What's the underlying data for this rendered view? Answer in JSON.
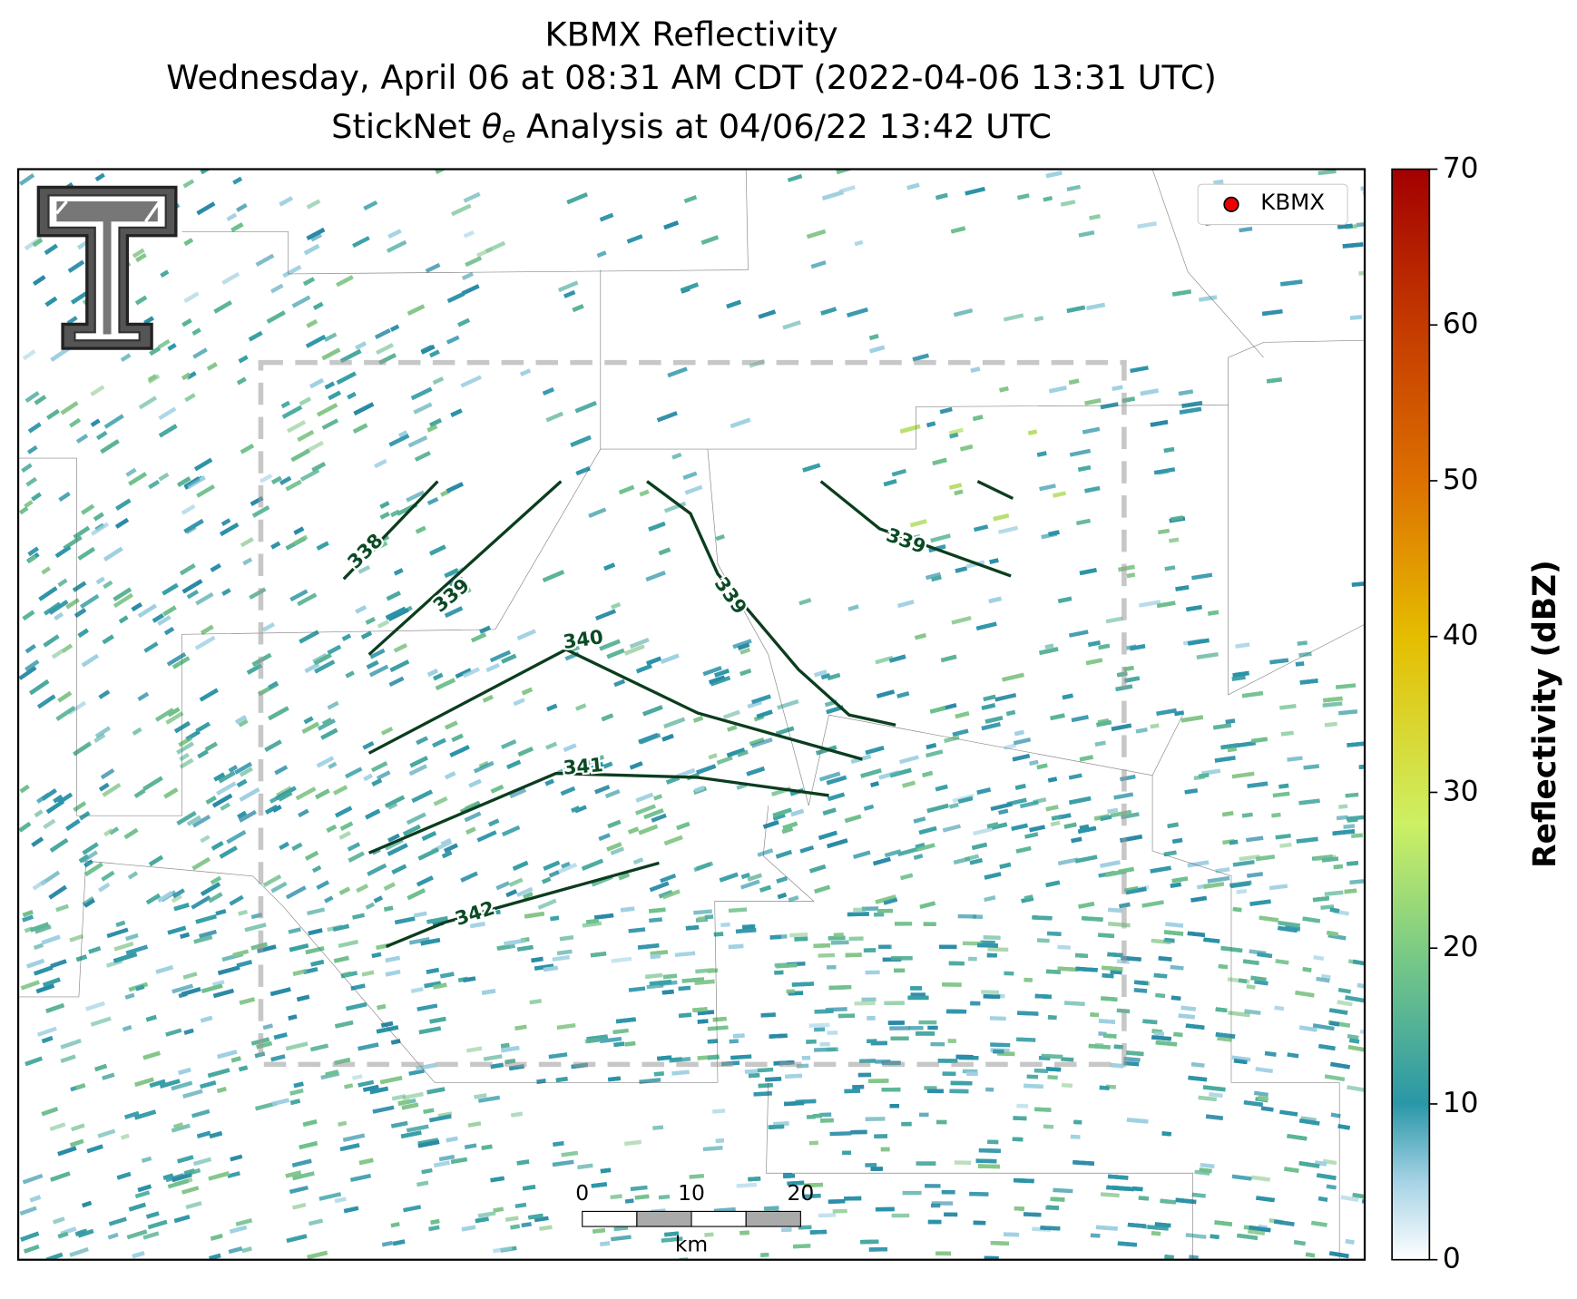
{
  "title_lines": [
    "KBMX Reflectivity",
    "Wednesday, April 06 at 08:31 AM CDT (2022-04-06 13:31 UTC)",
    [
      "StickNet ",
      "θ",
      "e",
      " Analysis at 04/06/22 13:42 UTC"
    ]
  ],
  "colorbar": {
    "label": "Reflectivity (dBZ)",
    "lim": [
      0,
      70
    ],
    "ticks": [
      0,
      10,
      20,
      30,
      40,
      50,
      60,
      70
    ]
  },
  "contours": [
    338,
    339,
    339,
    339,
    340,
    341,
    342
  ],
  "legend": [
    "KBMX"
  ],
  "scale_bar": {
    "ticks": [
      0,
      10,
      20
    ],
    "unit": "km"
  }
}
